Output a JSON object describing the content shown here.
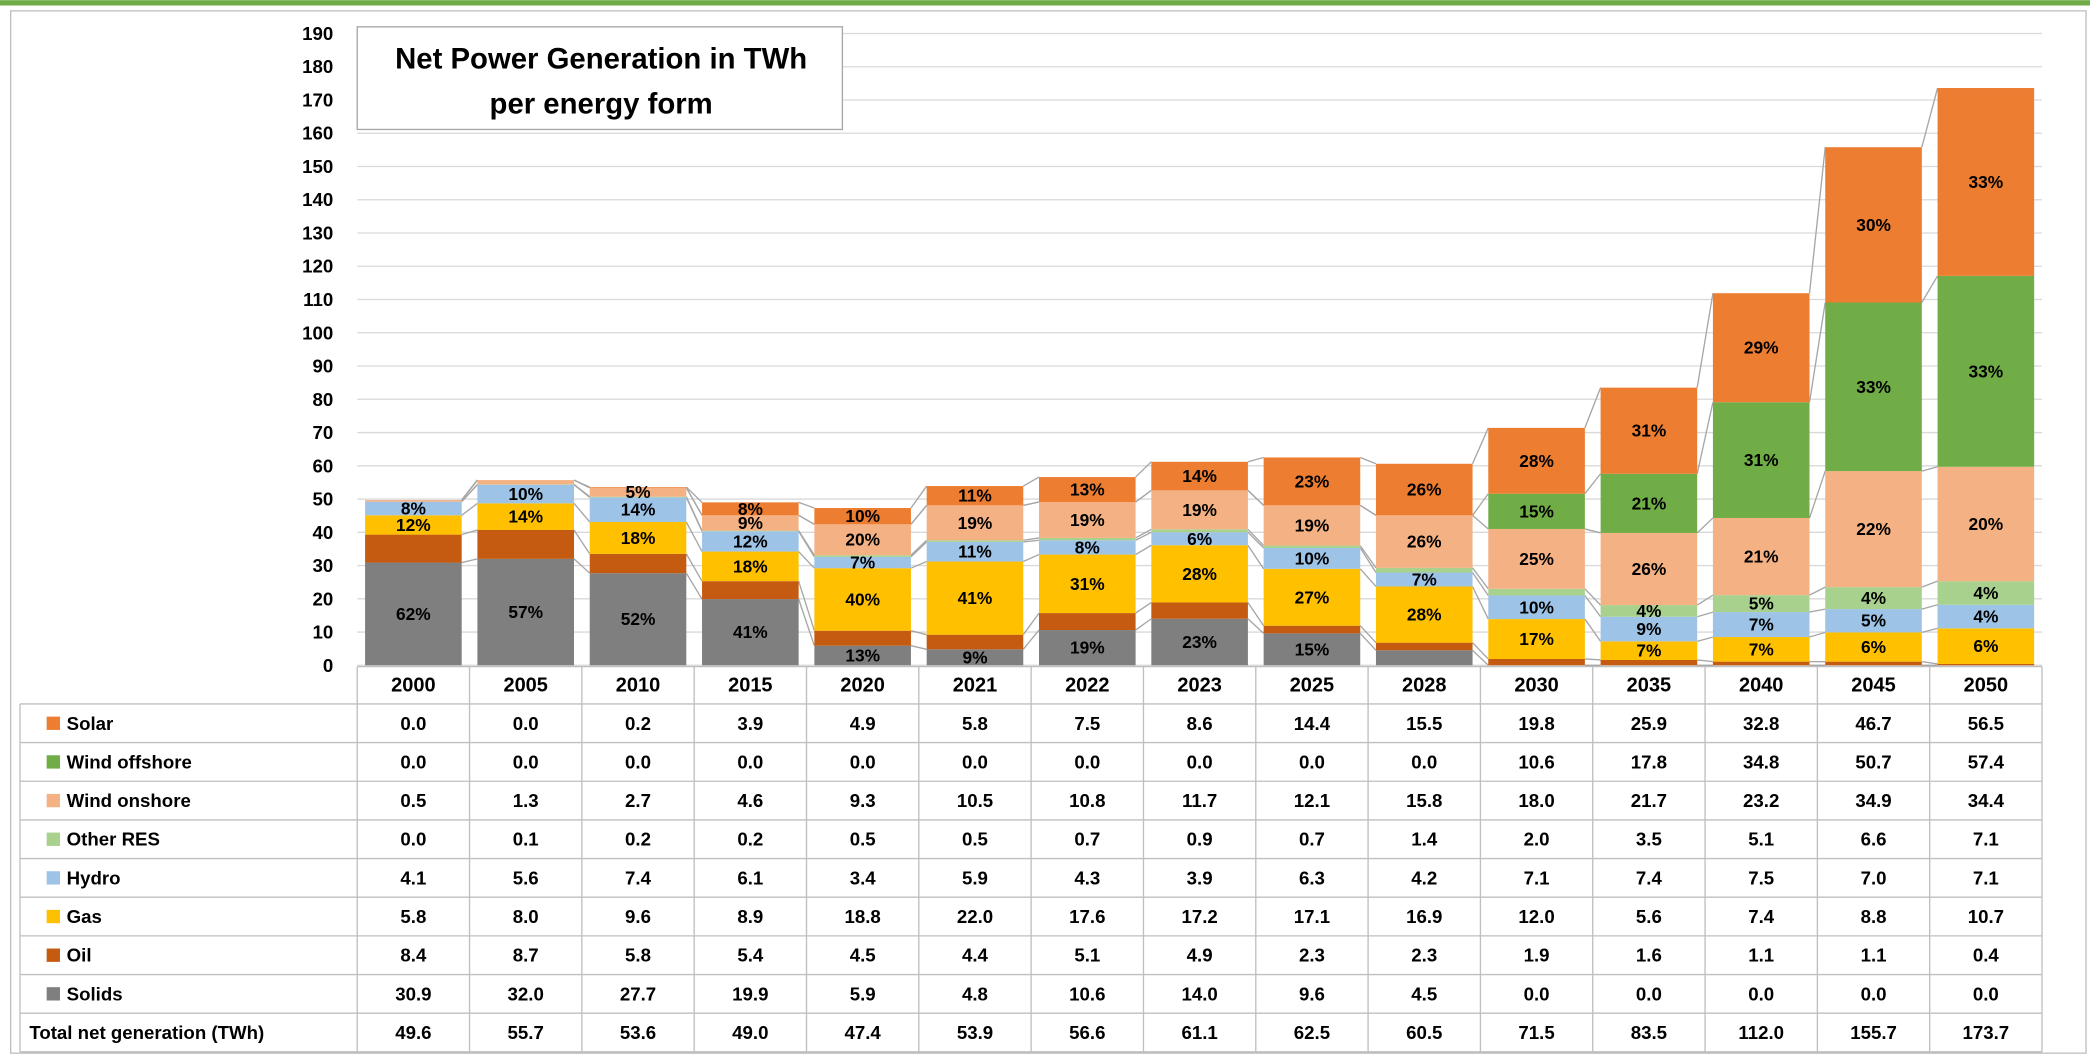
{
  "chart_data": {
    "type": "stacked_bar",
    "title": [
      "Net Power Generation in TWh",
      "per energy form"
    ],
    "categories": [
      "2000",
      "2005",
      "2010",
      "2015",
      "2020",
      "2021",
      "2022",
      "2023",
      "2025",
      "2028",
      "2030",
      "2035",
      "2040",
      "2045",
      "2050"
    ],
    "ylim": [
      0,
      190
    ],
    "yticks": [
      0,
      10,
      20,
      30,
      40,
      50,
      60,
      70,
      80,
      90,
      100,
      110,
      120,
      130,
      140,
      150,
      160,
      170,
      180,
      190
    ],
    "grid": true,
    "series": [
      {
        "name": "Solar",
        "color": "#ed7d31",
        "label_color": "#000000",
        "values": [
          0.0,
          0.0,
          0.2,
          3.9,
          4.9,
          5.8,
          7.5,
          8.6,
          14.4,
          15.5,
          19.8,
          25.9,
          32.8,
          46.7,
          56.5
        ],
        "value_labels": [
          "0.0",
          "0.0",
          "0.2",
          "3.9",
          "4.9",
          "5.8",
          "7.5",
          "8.6",
          "14.4",
          "15.5",
          "19.8",
          "25.9",
          "32.8",
          "46.7",
          "56.5"
        ],
        "share_labels": [
          null,
          null,
          null,
          "8%",
          "10%",
          "11%",
          "13%",
          "14%",
          "23%",
          "26%",
          "28%",
          "31%",
          "29%",
          "30%",
          "33%"
        ]
      },
      {
        "name": "Wind offshore",
        "color": "#70ad47",
        "label_color": "#000000",
        "values": [
          0,
          0,
          0,
          0,
          0,
          0,
          0,
          0,
          0,
          0,
          10.6,
          17.8,
          34.8,
          50.7,
          57.4
        ],
        "value_labels": [
          "0.0",
          "0.0",
          "0.0",
          "0.0",
          "0.0",
          "0.0",
          "0.0",
          "0.0",
          "0.0",
          "0.0",
          "10.6",
          "17.8",
          "34.8",
          "50.7",
          "57.4"
        ],
        "share_labels": [
          null,
          null,
          null,
          null,
          null,
          null,
          null,
          null,
          null,
          null,
          "15%",
          "21%",
          "31%",
          "33%",
          "33%"
        ]
      },
      {
        "name": "Wind onshore",
        "color": "#f4b183",
        "label_color": "#000000",
        "values": [
          0.5,
          1.3,
          2.7,
          4.6,
          9.3,
          10.5,
          10.8,
          11.7,
          12.1,
          15.8,
          18.0,
          21.7,
          23.2,
          34.9,
          34.4
        ],
        "value_labels": [
          "0.5",
          "1.3",
          "2.7",
          "4.6",
          "9.3",
          "10.5",
          "10.8",
          "11.7",
          "12.1",
          "15.8",
          "18.0",
          "21.7",
          "23.2",
          "34.9",
          "34.4"
        ],
        "share_labels": [
          null,
          null,
          "5%",
          "9%",
          "20%",
          "19%",
          "19%",
          "19%",
          "19%",
          "26%",
          "25%",
          "26%",
          "21%",
          "22%",
          "20%"
        ]
      },
      {
        "name": "Other RES",
        "color": "#a9d18e",
        "label_color": "#000000",
        "values": [
          0.0,
          0.1,
          0.2,
          0.2,
          0.5,
          0.5,
          0.7,
          0.9,
          0.7,
          1.4,
          2.0,
          3.5,
          5.1,
          6.6,
          7.1
        ],
        "value_labels": [
          "0.0",
          "0.1",
          "0.2",
          "0.2",
          "0.5",
          "0.5",
          "0.7",
          "0.9",
          "0.7",
          "1.4",
          "2.0",
          "3.5",
          "5.1",
          "6.6",
          "7.1"
        ],
        "share_labels": [
          null,
          null,
          null,
          null,
          null,
          null,
          null,
          null,
          null,
          null,
          null,
          "4%",
          "5%",
          "4%",
          "4%"
        ]
      },
      {
        "name": "Hydro",
        "color": "#9dc3e6",
        "label_color": "#000000",
        "values": [
          4.1,
          5.6,
          7.4,
          6.1,
          3.4,
          5.9,
          4.3,
          3.9,
          6.3,
          4.2,
          7.1,
          7.4,
          7.5,
          7.0,
          7.1
        ],
        "value_labels": [
          "4.1",
          "5.6",
          "7.4",
          "6.1",
          "3.4",
          "5.9",
          "4.3",
          "3.9",
          "6.3",
          "4.2",
          "7.1",
          "7.4",
          "7.5",
          "7.0",
          "7.1"
        ],
        "share_labels": [
          "8%",
          "10%",
          "14%",
          "12%",
          "7%",
          "11%",
          "8%",
          "6%",
          "10%",
          "7%",
          "10%",
          "9%",
          "7%",
          "5%",
          "4%"
        ]
      },
      {
        "name": "Gas",
        "color": "#ffc000",
        "label_color": "#000000",
        "values": [
          5.8,
          8.0,
          9.6,
          8.9,
          18.8,
          22.0,
          17.6,
          17.2,
          17.1,
          16.9,
          12.0,
          5.6,
          7.4,
          8.8,
          10.7
        ],
        "value_labels": [
          "5.8",
          "8.0",
          "9.6",
          "8.9",
          "18.8",
          "22.0",
          "17.6",
          "17.2",
          "17.1",
          "16.9",
          "12.0",
          "5.6",
          "7.4",
          "8.8",
          "10.7"
        ],
        "share_labels": [
          "12%",
          "14%",
          "18%",
          "18%",
          "40%",
          "41%",
          "31%",
          "28%",
          "27%",
          "28%",
          "17%",
          "7%",
          "7%",
          "6%",
          "6%"
        ]
      },
      {
        "name": "Oil",
        "color": "#c55a11",
        "label_color": "#000000",
        "values": [
          8.4,
          8.7,
          5.8,
          5.4,
          4.5,
          4.4,
          5.1,
          4.9,
          2.3,
          2.3,
          1.9,
          1.6,
          1.1,
          1.1,
          0.4
        ],
        "value_labels": [
          "8.4",
          "8.7",
          "5.8",
          "5.4",
          "4.5",
          "4.4",
          "5.1",
          "4.9",
          "2.3",
          "2.3",
          "1.9",
          "1.6",
          "1.1",
          "1.1",
          "0.4"
        ],
        "share_labels": [
          null,
          null,
          null,
          null,
          null,
          null,
          null,
          null,
          null,
          null,
          null,
          null,
          null,
          null,
          null
        ]
      },
      {
        "name": "Solids",
        "color": "#7f7f7f",
        "label_color": "#ffffff",
        "values": [
          30.9,
          32.0,
          27.7,
          19.9,
          5.9,
          4.8,
          10.6,
          14.0,
          9.6,
          4.5,
          0,
          0,
          0,
          0,
          0
        ],
        "value_labels": [
          "30.9",
          "32.0",
          "27.7",
          "19.9",
          "5.9",
          "4.8",
          "10.6",
          "14.0",
          "9.6",
          "4.5",
          "0.0",
          "0.0",
          "0.0",
          "0.0",
          "0.0"
        ],
        "share_labels": [
          "62%",
          "57%",
          "52%",
          "41%",
          "13%",
          "9%",
          "19%",
          "23%",
          "15%",
          null,
          null,
          null,
          null,
          null,
          null
        ]
      }
    ],
    "total_label": "Total net generation (TWh)",
    "totals": [
      "49.6",
      "55.7",
      "53.6",
      "49.0",
      "47.4",
      "53.9",
      "56.6",
      "61.1",
      "62.5",
      "60.5",
      "71.5",
      "83.5",
      "112.0",
      "155.7",
      "173.7"
    ]
  }
}
